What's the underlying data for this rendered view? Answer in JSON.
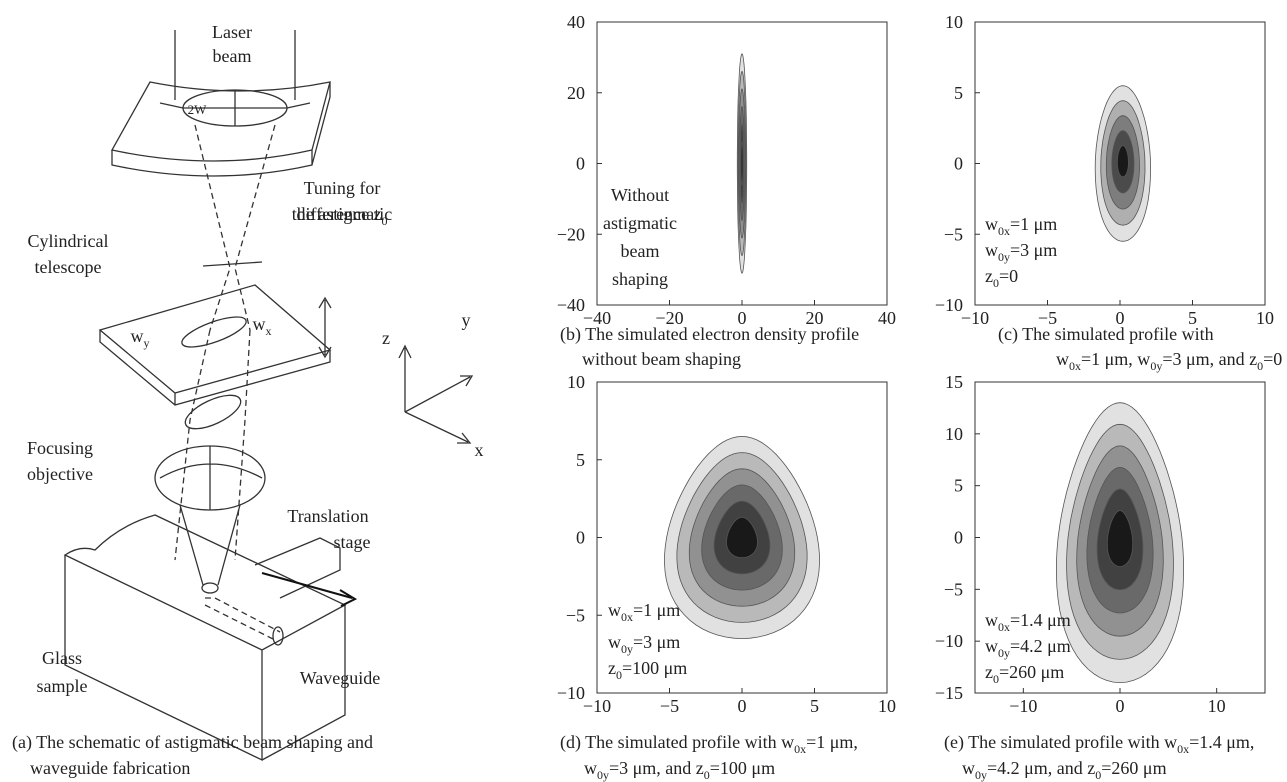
{
  "schematic": {
    "labels": [
      [
        [
          "Laser"
        ],
        [
          "beam"
        ]
      ],
      [
        [
          "2W"
        ]
      ],
      [
        [
          "Tuning for"
        ],
        [
          "the astigmatic"
        ],
        [
          "difference z",
          "0"
        ]
      ],
      [
        [
          "Cylindrical"
        ],
        [
          "telescope"
        ]
      ],
      [
        [
          "w",
          "y"
        ]
      ],
      [
        [
          "w",
          "x"
        ]
      ],
      [
        [
          "z"
        ]
      ],
      [
        [
          "y"
        ]
      ],
      [
        [
          "x"
        ]
      ],
      [
        [
          "Focusing"
        ],
        [
          "objective"
        ]
      ],
      [
        [
          "Translation"
        ],
        [
          "stage"
        ]
      ],
      [
        [
          "Glass"
        ],
        [
          "sample"
        ]
      ],
      [
        [
          "Waveguide"
        ]
      ]
    ],
    "caption": [
      [
        "(a) The schematic of astigmatic beam shaping and"
      ],
      [
        "waveguide fabrication"
      ]
    ]
  },
  "chart_data": [
    {
      "type": "contour",
      "xlim": [
        -40,
        40
      ],
      "ylim": [
        -40,
        40
      ],
      "xticks": [
        {
          "value": -40,
          "label": "−40"
        },
        {
          "value": -20,
          "label": "−20"
        },
        0,
        20,
        40
      ],
      "yticks": [
        {
          "value": -40,
          "label": "−40"
        },
        {
          "value": -20,
          "label": "−20"
        },
        0,
        20,
        40
      ],
      "annotation": [
        [
          "Without"
        ],
        [
          "astigmatic"
        ],
        [
          "beam"
        ],
        [
          "shaping"
        ]
      ],
      "caption": [
        [
          "(b) The simulated electron density profile"
        ],
        [
          "without beam shaping"
        ]
      ]
    },
    {
      "type": "contour",
      "xlim": [
        -10,
        10
      ],
      "ylim": [
        -10,
        10
      ],
      "xticks": [
        {
          "value": -10,
          "label": "−10"
        },
        {
          "value": -5,
          "label": "−5"
        },
        0,
        5,
        10
      ],
      "yticks": [
        {
          "value": -10,
          "label": "−10"
        },
        {
          "value": -5,
          "label": "−5"
        },
        0,
        5,
        10
      ],
      "annotation": [
        [
          "w",
          "0x",
          "=1 μm"
        ],
        [
          "w",
          "0y",
          "=3 μm"
        ],
        [
          "z",
          "0",
          "=0"
        ]
      ],
      "caption": [
        [
          "(c) The simulated profile with"
        ],
        [
          "w",
          "0x",
          "=1 μm, w",
          "0y",
          "=3 μm, and z",
          "0",
          "=0"
        ]
      ]
    },
    {
      "type": "contour",
      "xlim": [
        -10,
        10
      ],
      "ylim": [
        -10,
        10
      ],
      "xticks": [
        {
          "value": -10,
          "label": "−10"
        },
        {
          "value": -5,
          "label": "−5"
        },
        0,
        5,
        10
      ],
      "yticks": [
        {
          "value": -10,
          "label": "−10"
        },
        {
          "value": -5,
          "label": "−5"
        },
        0,
        5,
        10
      ],
      "annotation": [
        [
          "w",
          "0x",
          "=1 μm"
        ],
        [
          "w",
          "0y",
          "=3 μm"
        ],
        [
          "z",
          "0",
          "=100 μm"
        ]
      ],
      "caption": [
        [
          "(d) The simulated profile with w",
          "0x",
          "=1 μm,"
        ],
        [
          "w",
          "0y",
          "=3 μm, and z",
          "0",
          "=100 μm"
        ]
      ]
    },
    {
      "type": "contour",
      "xlim": [
        -15,
        15
      ],
      "ylim": [
        -15,
        15
      ],
      "xticks": [
        {
          "value": -10,
          "label": "−10"
        },
        0,
        10
      ],
      "yticks": [
        {
          "value": -15,
          "label": "−15"
        },
        {
          "value": -10,
          "label": "−10"
        },
        {
          "value": -5,
          "label": "−5"
        },
        0,
        5,
        10,
        15
      ],
      "annotation": [
        [
          "w",
          "0x",
          "=1.4 μm"
        ],
        [
          "w",
          "0y",
          "=4.2 μm"
        ],
        [
          "z",
          "0",
          "=260 μm"
        ]
      ],
      "caption": [
        [
          "(e) The simulated profile with w",
          "0x",
          "=1.4 μm,"
        ],
        [
          "w",
          "0y",
          "=4.2 μm, and z",
          "0",
          "=260 μm"
        ]
      ]
    }
  ]
}
